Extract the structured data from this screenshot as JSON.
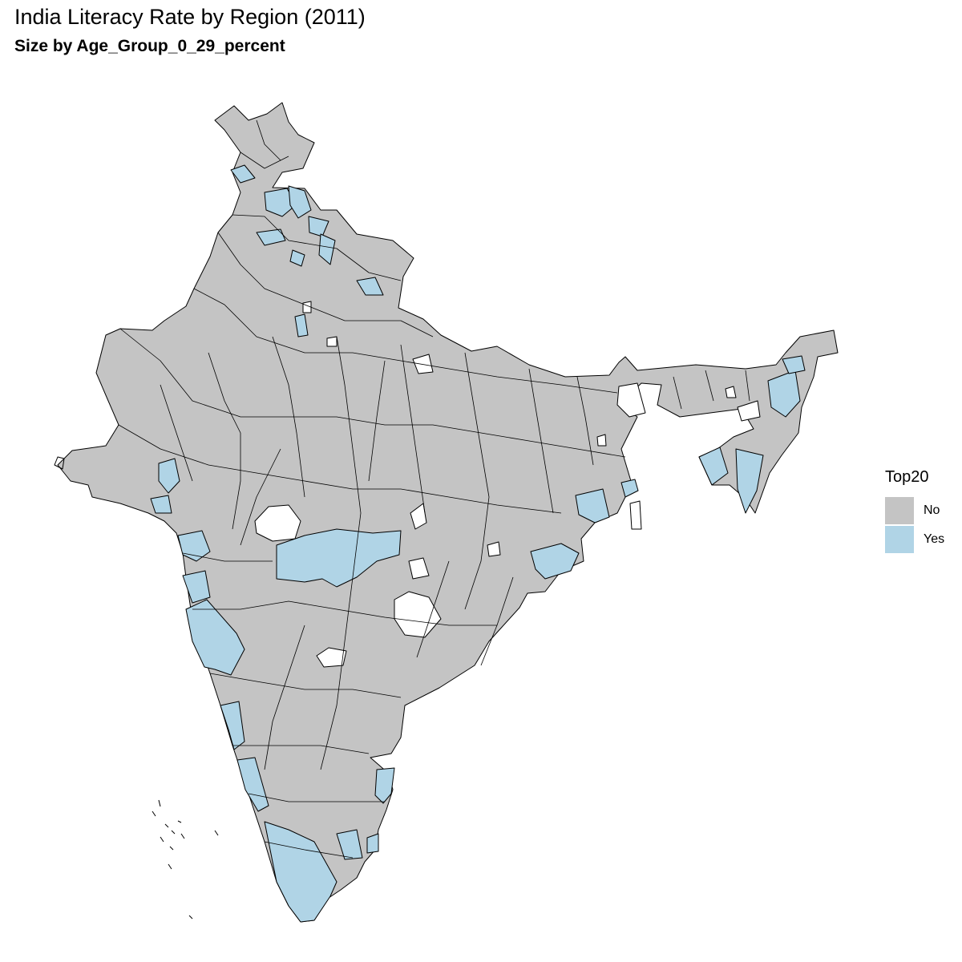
{
  "title": "India Literacy Rate by Region (2011)",
  "subtitle": "Size by Age_Group_0_29_percent",
  "legend": {
    "title": "Top20",
    "items": [
      {
        "label": "No",
        "color": "#c4c4c4"
      },
      {
        "label": "Yes",
        "color": "#b0d4e6"
      }
    ]
  },
  "colors": {
    "border": "#000000",
    "no": "#c4c4c4",
    "yes": "#b0d4e6",
    "background": "#ffffff"
  }
}
